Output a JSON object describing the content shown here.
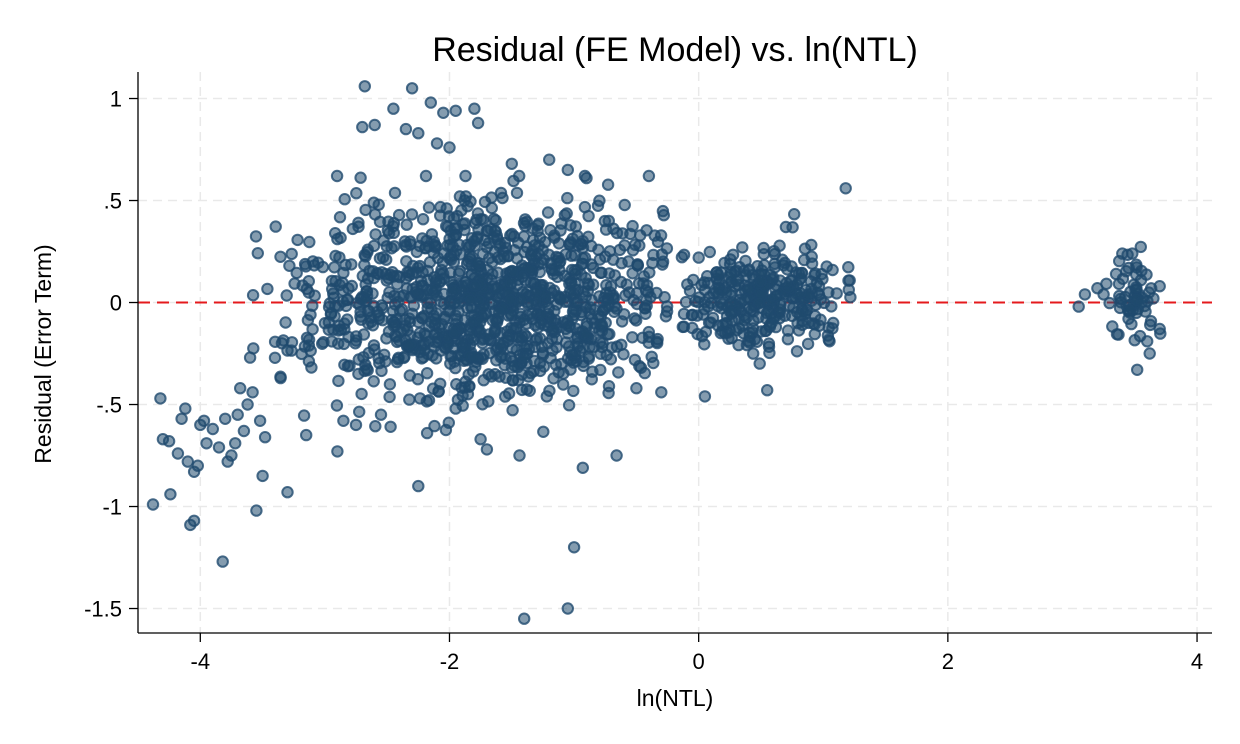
{
  "chart_data": {
    "type": "scatter",
    "title": "Residual (FE Model) vs. ln(NTL)",
    "xlabel": "ln(NTL)",
    "ylabel": "Residual (Error Term)",
    "xlim": [
      -4.5,
      4.12
    ],
    "ylim": [
      -1.62,
      1.13
    ],
    "x_ticks": [
      -4,
      -2,
      0,
      2,
      4
    ],
    "x_tick_labels": [
      "-4",
      "-2",
      "0",
      "2",
      "4"
    ],
    "y_ticks": [
      1,
      0.5,
      0,
      -0.5,
      -1,
      -1.5
    ],
    "y_tick_labels": [
      "1",
      ".5",
      "0",
      "-.5",
      "-1",
      "-1.5"
    ],
    "grid": true,
    "reference_line": {
      "axis": "y",
      "value": 0,
      "color": "#e41a1c",
      "style": "dashed"
    },
    "marker_color": "#1f4a6e",
    "clusters": [
      {
        "x_center": -1.7,
        "x_sd": 0.75,
        "y_center": 0.0,
        "y_sd": 0.24,
        "x_min": -3.6,
        "x_max": -0.25,
        "count": 1200
      },
      {
        "x_center": 0.5,
        "x_sd": 0.38,
        "y_center": 0.02,
        "y_sd": 0.12,
        "x_min": -0.15,
        "x_max": 1.25,
        "count": 320
      },
      {
        "x_center": 3.5,
        "x_sd": 0.1,
        "y_center": 0.02,
        "y_sd": 0.1,
        "x_min": 3.05,
        "x_max": 3.72,
        "count": 55
      }
    ],
    "points": [
      [
        -4.38,
        -0.99
      ],
      [
        -4.32,
        -0.47
      ],
      [
        -4.3,
        -0.67
      ],
      [
        -4.25,
        -0.68
      ],
      [
        -4.24,
        -0.94
      ],
      [
        -4.18,
        -0.74
      ],
      [
        -4.15,
        -0.57
      ],
      [
        -4.12,
        -0.52
      ],
      [
        -4.1,
        -0.78
      ],
      [
        -4.08,
        -1.09
      ],
      [
        -4.05,
        -1.07
      ],
      [
        -4.05,
        -0.83
      ],
      [
        -4.02,
        -0.8
      ],
      [
        -4.0,
        -0.6
      ],
      [
        -3.97,
        -0.58
      ],
      [
        -3.95,
        -0.69
      ],
      [
        -3.9,
        -0.62
      ],
      [
        -3.85,
        -0.71
      ],
      [
        -3.82,
        -1.27
      ],
      [
        -3.8,
        -0.57
      ],
      [
        -3.78,
        -0.78
      ],
      [
        -3.75,
        -0.75
      ],
      [
        -3.72,
        -0.69
      ],
      [
        -3.7,
        -0.55
      ],
      [
        -3.68,
        -0.42
      ],
      [
        -3.65,
        -0.63
      ],
      [
        -3.62,
        -0.5
      ],
      [
        -3.6,
        -0.27
      ],
      [
        -3.58,
        -0.44
      ],
      [
        -3.55,
        -1.02
      ],
      [
        -3.52,
        -0.58
      ],
      [
        -3.5,
        -0.85
      ],
      [
        -3.48,
        -0.66
      ],
      [
        -3.3,
        -0.93
      ],
      [
        -3.15,
        -0.65
      ],
      [
        -2.9,
        -0.73
      ],
      [
        -2.75,
        -0.6
      ],
      [
        -2.55,
        -0.55
      ],
      [
        -2.25,
        -0.9
      ],
      [
        -2.18,
        -0.64
      ],
      [
        -1.95,
        -0.52
      ],
      [
        -1.75,
        -0.67
      ],
      [
        -1.7,
        -0.72
      ],
      [
        -1.4,
        -1.55
      ],
      [
        -1.05,
        -1.5
      ],
      [
        -1.0,
        -1.2
      ],
      [
        -0.93,
        -0.81
      ],
      [
        -0.72,
        -0.41
      ],
      [
        -0.5,
        -0.42
      ],
      [
        -0.3,
        -0.44
      ],
      [
        -2.68,
        1.06
      ],
      [
        -2.3,
        1.05
      ],
      [
        -2.15,
        0.98
      ],
      [
        -2.05,
        0.93
      ],
      [
        -1.95,
        0.94
      ],
      [
        -1.8,
        0.95
      ],
      [
        -1.77,
        0.88
      ],
      [
        -2.45,
        0.95
      ],
      [
        -2.6,
        0.87
      ],
      [
        -2.35,
        0.85
      ],
      [
        -2.7,
        0.86
      ],
      [
        -2.25,
        0.83
      ],
      [
        -2.1,
        0.78
      ],
      [
        -2.0,
        0.76
      ],
      [
        -1.5,
        0.68
      ],
      [
        -1.2,
        0.7
      ],
      [
        -1.05,
        0.65
      ],
      [
        -0.9,
        0.61
      ],
      [
        1.18,
        0.56
      ],
      [
        0.05,
        -0.46
      ],
      [
        0.55,
        -0.43
      ],
      [
        1.05,
        -0.19
      ],
      [
        0.0,
        0.22
      ],
      [
        0.35,
        0.27
      ],
      [
        0.7,
        0.37
      ],
      [
        3.05,
        -0.02
      ],
      [
        3.1,
        0.04
      ],
      [
        3.2,
        0.07
      ],
      [
        3.25,
        0.04
      ],
      [
        3.35,
        0.14
      ],
      [
        3.4,
        0.24
      ],
      [
        3.48,
        0.24
      ],
      [
        3.52,
        -0.33
      ],
      [
        3.6,
        -0.19
      ],
      [
        3.62,
        -0.25
      ],
      [
        3.7,
        -0.13
      ],
      [
        3.7,
        0.08
      ],
      [
        3.65,
        0.02
      ],
      [
        3.55,
        0.11
      ],
      [
        3.45,
        -0.08
      ]
    ]
  }
}
